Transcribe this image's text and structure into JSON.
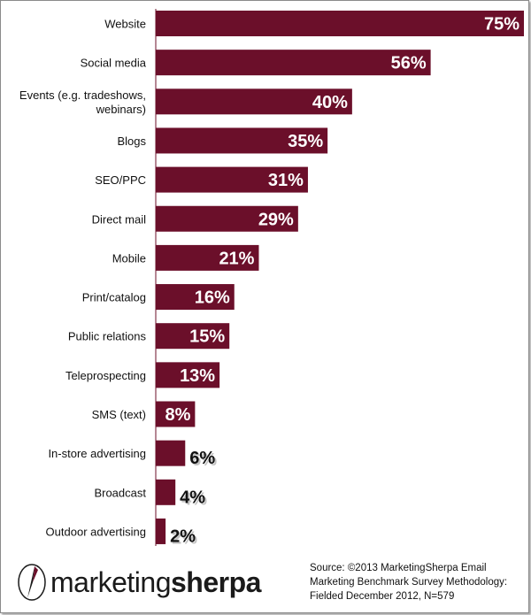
{
  "chart_data": {
    "type": "bar",
    "orientation": "horizontal",
    "categories": [
      "Website",
      "Social media",
      [
        "Events (e.g. tradeshows,",
        "webinars)"
      ],
      "Blogs",
      "SEO/PPC",
      "Direct mail",
      "Mobile",
      "Print/catalog",
      "Public relations",
      "Teleprospecting",
      "SMS (text)",
      "In-store advertising",
      "Broadcast",
      "Outdoor advertising"
    ],
    "values": [
      75,
      56,
      40,
      35,
      31,
      29,
      21,
      16,
      15,
      13,
      8,
      6,
      4,
      2
    ],
    "value_labels": [
      "75%",
      "56%",
      "40%",
      "35%",
      "31%",
      "29%",
      "21%",
      "16%",
      "15%",
      "13%",
      "8%",
      "6%",
      "4%",
      "2%"
    ],
    "xlim": [
      0,
      75
    ],
    "bar_color": "#6b0f2a",
    "grid": false,
    "legend": "none"
  },
  "logo": {
    "part1": "marketing",
    "part2": "sherpa"
  },
  "source": {
    "lines": [
      "Source: ©2013 MarketingSherpa Email",
      "Marketing Benchmark Survey Methodology:",
      "Fielded December 2012, N=579"
    ]
  }
}
